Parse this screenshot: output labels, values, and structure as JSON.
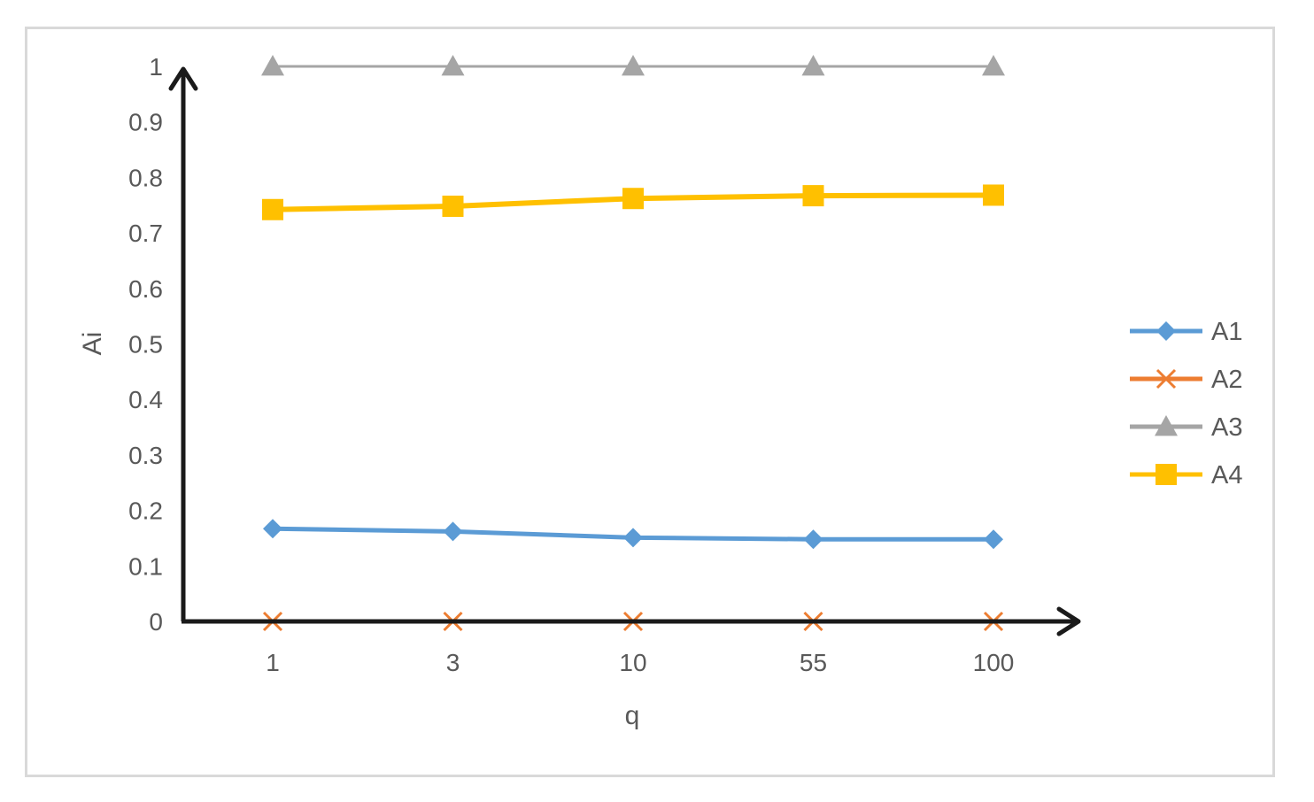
{
  "chart_data": {
    "type": "line",
    "categories": [
      "1",
      "3",
      "10",
      "55",
      "100"
    ],
    "xlabel": "q",
    "ylabel": "Ai",
    "ylim": [
      0,
      1
    ],
    "yticks": [
      "0",
      "0.1",
      "0.2",
      "0.3",
      "0.4",
      "0.5",
      "0.6",
      "0.7",
      "0.8",
      "0.9",
      "1"
    ],
    "grid": false,
    "legend_position": "right",
    "series": [
      {
        "name": "A1",
        "values": [
          0.167,
          0.162,
          0.151,
          0.148,
          0.148
        ],
        "color": "#5b9bd5",
        "marker": "diamond"
      },
      {
        "name": "A2",
        "values": [
          0,
          0,
          0,
          0,
          0
        ],
        "color": "#ed7d31",
        "marker": "x"
      },
      {
        "name": "A3",
        "values": [
          1,
          1,
          1,
          1,
          1
        ],
        "color": "#a5a5a5",
        "marker": "triangle"
      },
      {
        "name": "A4",
        "values": [
          0.742,
          0.748,
          0.762,
          0.767,
          0.768
        ],
        "color": "#ffc000",
        "marker": "square"
      }
    ],
    "axis_color": "#1a1a1a"
  }
}
